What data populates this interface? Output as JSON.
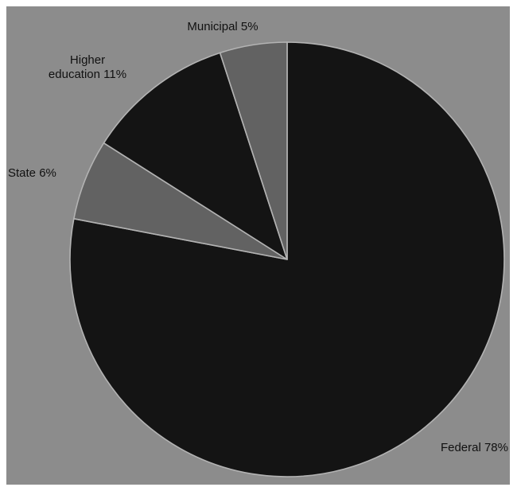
{
  "chart_data": {
    "type": "pie",
    "start_angle_deg": 0,
    "direction": "clockwise",
    "colors": {
      "background": "#8c8c8c",
      "slice_stroke": "#b3b3b3"
    },
    "slices": [
      {
        "label": "Federal 78%",
        "value": 78,
        "color": "#141414"
      },
      {
        "label": "State 6%",
        "value": 6,
        "color": "#626262"
      },
      {
        "label": "Higher\neducation 11%",
        "value": 11,
        "color": "#141414"
      },
      {
        "label": "Municipal 5%",
        "value": 5,
        "color": "#626262"
      }
    ]
  }
}
